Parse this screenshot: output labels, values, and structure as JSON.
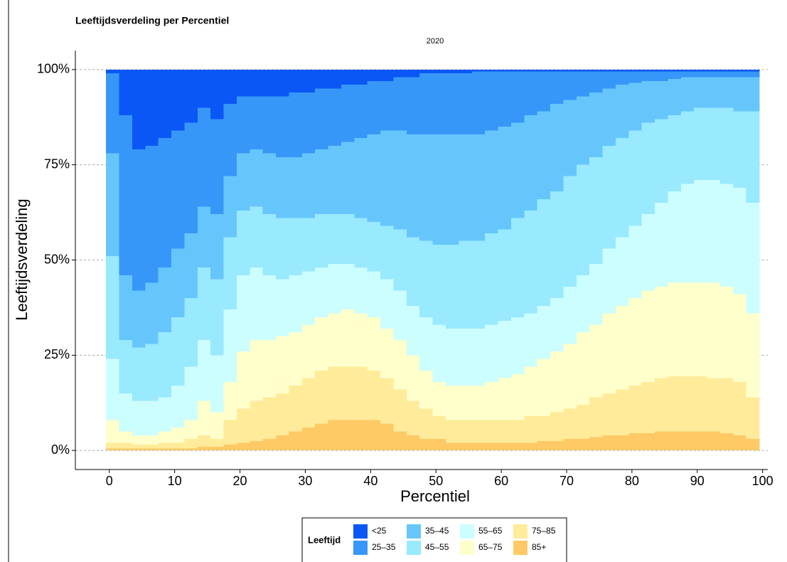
{
  "chart_data": {
    "type": "bar",
    "stacked": true,
    "title": "Leeftijdsverdeling per Percentiel",
    "subtitle": "2020",
    "x_label": "Percentiel",
    "y_label": "Leeftijdsverdeling",
    "legend_title": "Leeftijd",
    "legend_position": "bottom",
    "grid": true,
    "x": [
      0,
      2,
      4,
      6,
      8,
      10,
      12,
      14,
      16,
      18,
      20,
      22,
      24,
      26,
      28,
      30,
      32,
      34,
      36,
      38,
      40,
      42,
      44,
      46,
      48,
      50,
      52,
      54,
      56,
      58,
      60,
      62,
      64,
      66,
      68,
      70,
      72,
      74,
      76,
      78,
      80,
      82,
      84,
      86,
      88,
      90,
      92,
      94,
      96,
      98
    ],
    "xlim": [
      -5.2,
      100.8
    ],
    "xticks": [
      0,
      10,
      20,
      30,
      40,
      50,
      60,
      70,
      80,
      90,
      100
    ],
    "ylim": [
      -5,
      105
    ],
    "yticks": [
      {
        "value": 0,
        "label": "0%"
      },
      {
        "value": 25,
        "label": "25%"
      },
      {
        "value": 50,
        "label": "50%"
      },
      {
        "value": 75,
        "label": "75%"
      },
      {
        "value": 100,
        "label": "100%"
      }
    ],
    "series": [
      {
        "name": "<25",
        "color": "#0a57f5",
        "values": [
          1,
          12,
          21,
          20,
          18,
          16,
          14,
          10,
          13,
          9,
          7,
          7,
          7,
          7,
          6,
          6,
          5,
          5,
          4,
          4,
          3,
          3,
          2,
          2,
          1,
          1,
          1,
          1,
          0.5,
          0.5,
          0.5,
          0.5,
          0.5,
          0.5,
          0.5,
          0.5,
          0.5,
          0.5,
          0.5,
          0.5,
          0.5,
          0.5,
          0.5,
          0.5,
          0.5,
          0.5,
          0.5,
          0.5,
          0.5,
          0.5
        ]
      },
      {
        "name": "25–35",
        "color": "#3797f8",
        "values": [
          21,
          42,
          37,
          36,
          34,
          31,
          29,
          26,
          25,
          19,
          15,
          14,
          15,
          16,
          17,
          16,
          16,
          15,
          15,
          14,
          14,
          13,
          14,
          15,
          16,
          16,
          16,
          16,
          16.5,
          15.5,
          14.5,
          13.5,
          11.5,
          10.5,
          8.5,
          7.5,
          6.5,
          5.5,
          4.5,
          3.5,
          3,
          2.5,
          2.5,
          2,
          1.5,
          1.5,
          1.5,
          1.5,
          1.5,
          1.5
        ]
      },
      {
        "name": "35–45",
        "color": "#66c6fc",
        "values": [
          27,
          17,
          15,
          16,
          17,
          18,
          17,
          16,
          17,
          16,
          15,
          15,
          16,
          16,
          16,
          17,
          17,
          18,
          19,
          21,
          23,
          25,
          26,
          27,
          28,
          29,
          29,
          28,
          28,
          27,
          27,
          25,
          25,
          23,
          23,
          20,
          18,
          17,
          15,
          14,
          12.5,
          11,
          10,
          9.5,
          9,
          8,
          8,
          8,
          9,
          9
        ]
      },
      {
        "name": "45–55",
        "color": "#99e9ff",
        "values": [
          27,
          14,
          14,
          15,
          17,
          18,
          18,
          19,
          20,
          19,
          17,
          16,
          16,
          16,
          15,
          14,
          14,
          13,
          13,
          13,
          13,
          14,
          16,
          18,
          20,
          21,
          22,
          23,
          23,
          24,
          24,
          26,
          27,
          28,
          28,
          29,
          29,
          28,
          27,
          26,
          25,
          24,
          22,
          20,
          19,
          19,
          19,
          20,
          20,
          24
        ]
      },
      {
        "name": "55–65",
        "color": "#ccfdff",
        "values": [
          16,
          10,
          9,
          9,
          9,
          11,
          14,
          16,
          15,
          19,
          20,
          19,
          17,
          15,
          15,
          14,
          13,
          13,
          12,
          12,
          12,
          13,
          13,
          13,
          14,
          15,
          15,
          15,
          15,
          15,
          15,
          15,
          14,
          14,
          14,
          15,
          15,
          16,
          17,
          18,
          19,
          20,
          22,
          24,
          26,
          27,
          27,
          27,
          28,
          29
        ]
      },
      {
        "name": "65–75",
        "color": "#ffffcc",
        "values": [
          6,
          3,
          2.5,
          2.5,
          3,
          4,
          5,
          9,
          7,
          10,
          15,
          16,
          15,
          15,
          14,
          14,
          14,
          14,
          15,
          14,
          14,
          13,
          13,
          12,
          10,
          9,
          9,
          9,
          9,
          10,
          11,
          12,
          13,
          15,
          16,
          17,
          19,
          19,
          21,
          22,
          23,
          24,
          24,
          24.5,
          24.5,
          24.5,
          25,
          24,
          23,
          22
        ]
      },
      {
        "name": "75–85",
        "color": "#ffeb99",
        "values": [
          1.5,
          1.5,
          1,
          1,
          1.5,
          1.5,
          2.5,
          3,
          2,
          6.5,
          9,
          10.5,
          11,
          11,
          12,
          13,
          14,
          14,
          14,
          14,
          13,
          12,
          11,
          9,
          8,
          6,
          6,
          6,
          6,
          6,
          6,
          6,
          7,
          6.5,
          7.5,
          8,
          9,
          10.5,
          11,
          12,
          12.5,
          13.5,
          14,
          14.5,
          14.5,
          14.5,
          14,
          14.5,
          14,
          11
        ]
      },
      {
        "name": "85+",
        "color": "#ffc966",
        "values": [
          0.5,
          0.5,
          0.5,
          0.5,
          0.5,
          0.5,
          0.5,
          1,
          1,
          1.5,
          2,
          2.5,
          3,
          4,
          5,
          6,
          7,
          8,
          8,
          8,
          8,
          7,
          5,
          4,
          3,
          3,
          2,
          2,
          2,
          2,
          2,
          2,
          2,
          2.5,
          2.5,
          3,
          3,
          3.5,
          4,
          4,
          4.5,
          4.5,
          5,
          5,
          5,
          5,
          5,
          4.5,
          4,
          3
        ]
      }
    ]
  }
}
